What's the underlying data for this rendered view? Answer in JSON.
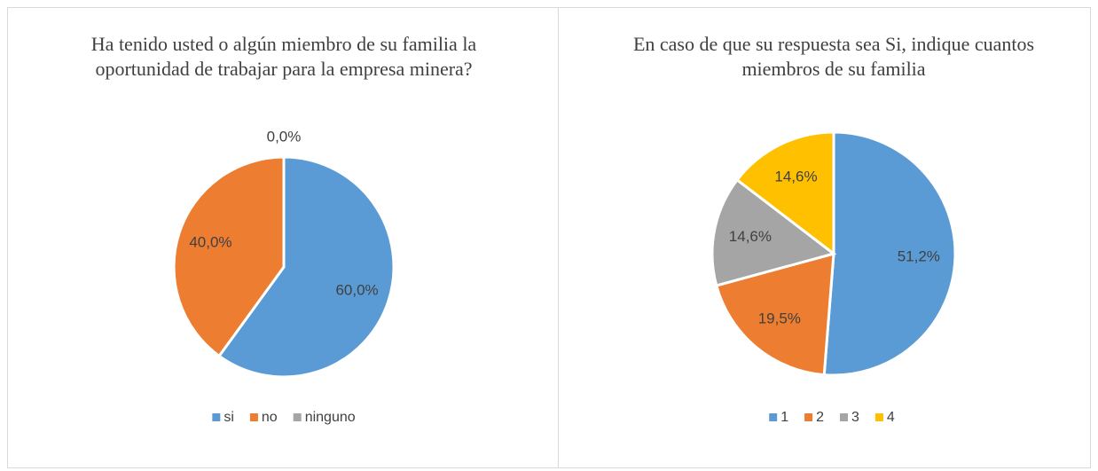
{
  "chart_data": [
    {
      "type": "pie",
      "title": "Ha tenido usted o algún miembro de su familia la oportunidad de trabajar para la empresa minera?",
      "categories": [
        "si",
        "no",
        "ninguno"
      ],
      "values": [
        60,
        40,
        0
      ],
      "value_labels": [
        "60,0%",
        "40,0%",
        "0,0%"
      ],
      "colors": [
        "#5b9bd5",
        "#ed7d31",
        "#a5a5a5"
      ],
      "legend": "bottom"
    },
    {
      "type": "pie",
      "title": "En caso de que su respuesta sea Si, indique cuantos miembros de su familia",
      "categories": [
        "1",
        "2",
        "3",
        "4"
      ],
      "values": [
        51.2,
        19.5,
        14.6,
        14.6
      ],
      "value_labels": [
        "51,2%",
        "19,5%",
        "14,6%",
        "14,6%"
      ],
      "colors": [
        "#5b9bd5",
        "#ed7d31",
        "#a5a5a5",
        "#ffc000"
      ],
      "legend": "bottom"
    }
  ]
}
